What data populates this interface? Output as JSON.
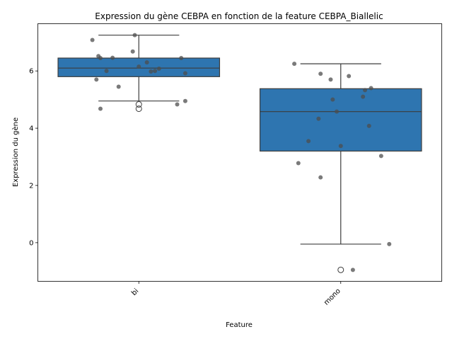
{
  "chart_data": {
    "type": "box",
    "title": "Expression du gène CEBPA en fonction de la feature CEBPA_Biallelic",
    "xlabel": "Feature",
    "ylabel": "Expression du gène",
    "categories": [
      "bi",
      "mono"
    ],
    "ylim": [
      -1.35,
      7.65
    ],
    "yticks": [
      0,
      2,
      4,
      6
    ],
    "grid": false,
    "box_color": "#2e75b0",
    "point_color": "#4d4d4d",
    "boxes": [
      {
        "category": "bi",
        "q1": 5.8,
        "median": 6.1,
        "q3": 6.45,
        "whisker_low": 4.95,
        "whisker_high": 7.25,
        "outliers": [
          4.83,
          4.68
        ]
      },
      {
        "category": "mono",
        "q1": 3.2,
        "median": 4.58,
        "q3": 5.38,
        "whisker_low": -0.05,
        "whisker_high": 6.25,
        "outliers": [
          -0.95
        ]
      }
    ],
    "points": [
      {
        "category": "bi",
        "jitter": -0.02,
        "y": 7.25
      },
      {
        "category": "bi",
        "jitter": -0.23,
        "y": 7.08
      },
      {
        "category": "bi",
        "jitter": -0.03,
        "y": 6.68
      },
      {
        "category": "bi",
        "jitter": -0.2,
        "y": 6.52
      },
      {
        "category": "bi",
        "jitter": -0.13,
        "y": 6.46
      },
      {
        "category": "bi",
        "jitter": -0.19,
        "y": 6.45
      },
      {
        "category": "bi",
        "jitter": 0.21,
        "y": 6.45
      },
      {
        "category": "bi",
        "jitter": 0.04,
        "y": 6.3
      },
      {
        "category": "bi",
        "jitter": 0.0,
        "y": 6.15
      },
      {
        "category": "bi",
        "jitter": 0.1,
        "y": 6.08
      },
      {
        "category": "bi",
        "jitter": -0.16,
        "y": 6.0
      },
      {
        "category": "bi",
        "jitter": 0.08,
        "y": 6.0
      },
      {
        "category": "bi",
        "jitter": 0.06,
        "y": 5.98
      },
      {
        "category": "bi",
        "jitter": 0.23,
        "y": 5.92
      },
      {
        "category": "bi",
        "jitter": -0.21,
        "y": 5.7
      },
      {
        "category": "bi",
        "jitter": -0.1,
        "y": 5.45
      },
      {
        "category": "bi",
        "jitter": 0.23,
        "y": 4.95
      },
      {
        "category": "bi",
        "jitter": 0.19,
        "y": 4.83
      },
      {
        "category": "bi",
        "jitter": -0.19,
        "y": 4.68
      },
      {
        "category": "mono",
        "jitter": -0.23,
        "y": 6.25
      },
      {
        "category": "mono",
        "jitter": -0.1,
        "y": 5.9
      },
      {
        "category": "mono",
        "jitter": 0.04,
        "y": 5.82
      },
      {
        "category": "mono",
        "jitter": -0.05,
        "y": 5.7
      },
      {
        "category": "mono",
        "jitter": 0.15,
        "y": 5.4
      },
      {
        "category": "mono",
        "jitter": 0.12,
        "y": 5.33
      },
      {
        "category": "mono",
        "jitter": 0.11,
        "y": 5.1
      },
      {
        "category": "mono",
        "jitter": -0.04,
        "y": 5.0
      },
      {
        "category": "mono",
        "jitter": -0.02,
        "y": 4.58
      },
      {
        "category": "mono",
        "jitter": -0.11,
        "y": 4.33
      },
      {
        "category": "mono",
        "jitter": 0.14,
        "y": 4.08
      },
      {
        "category": "mono",
        "jitter": -0.16,
        "y": 3.55
      },
      {
        "category": "mono",
        "jitter": 0.0,
        "y": 3.38
      },
      {
        "category": "mono",
        "jitter": 0.2,
        "y": 3.03
      },
      {
        "category": "mono",
        "jitter": -0.21,
        "y": 2.78
      },
      {
        "category": "mono",
        "jitter": -0.1,
        "y": 2.28
      },
      {
        "category": "mono",
        "jitter": 0.24,
        "y": -0.05
      },
      {
        "category": "mono",
        "jitter": 0.06,
        "y": -0.95
      }
    ]
  }
}
